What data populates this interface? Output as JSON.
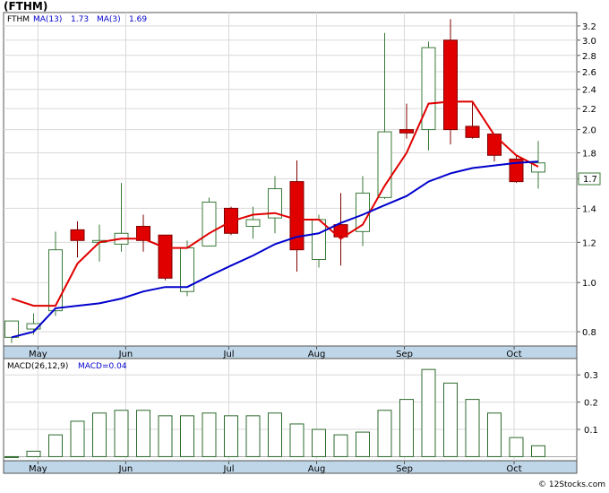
{
  "header": {
    "title": "(FTHM)",
    "ticker": "FTHM",
    "ma13_label": "MA(13)",
    "ma13_value": "1.73",
    "ma3_label": "MA(3)",
    "ma3_value": "1.69"
  },
  "macd_header": {
    "params": "MACD(26,12,9)",
    "value_label": "MACD=0.04"
  },
  "watermark": "© 12Stocks.com",
  "colors": {
    "up": "#3a7a3a",
    "down": "#e00000",
    "ma13": "#0000cc",
    "ma3": "#e00000",
    "grid": "#d9d9d9",
    "axis_bg": "#bfd6e8",
    "histogram": "#2d6a2d"
  },
  "chart_data": [
    {
      "type": "candlestick",
      "scale": "log",
      "ylim": [
        0.75,
        3.4
      ],
      "y_ticks": [
        "0.8",
        "1.0",
        "1.2",
        "1.4",
        "1.6",
        "1.8",
        "2.0",
        "2.2",
        "2.4",
        "2.6",
        "2.8",
        "3.0",
        "3.2"
      ],
      "x_tick_labels": [
        {
          "label": "May",
          "index": 1.2
        },
        {
          "label": "Jun",
          "index": 5.2
        },
        {
          "label": "Jul",
          "index": 9.9
        },
        {
          "label": "Aug",
          "index": 13.9
        },
        {
          "label": "Sep",
          "index": 17.9
        },
        {
          "label": "Oct",
          "index": 22.9
        }
      ],
      "last_price_label": "1.7",
      "candles": [
        {
          "open": 0.78,
          "high": 0.84,
          "low": 0.76,
          "close": 0.84
        },
        {
          "open": 0.81,
          "high": 0.87,
          "low": 0.79,
          "close": 0.83
        },
        {
          "open": 0.88,
          "high": 1.26,
          "low": 0.86,
          "close": 1.16
        },
        {
          "open": 1.27,
          "high": 1.32,
          "low": 1.12,
          "close": 1.21
        },
        {
          "open": 1.2,
          "high": 1.3,
          "low": 1.1,
          "close": 1.21
        },
        {
          "open": 1.19,
          "high": 1.57,
          "low": 1.15,
          "close": 1.25
        },
        {
          "open": 1.29,
          "high": 1.36,
          "low": 1.15,
          "close": 1.21
        },
        {
          "open": 1.24,
          "high": 1.24,
          "low": 1.01,
          "close": 1.02
        },
        {
          "open": 0.96,
          "high": 1.21,
          "low": 0.94,
          "close": 1.17
        },
        {
          "open": 1.18,
          "high": 1.47,
          "low": 1.18,
          "close": 1.44
        },
        {
          "open": 1.4,
          "high": 1.41,
          "low": 1.24,
          "close": 1.25
        },
        {
          "open": 1.29,
          "high": 1.41,
          "low": 1.22,
          "close": 1.33
        },
        {
          "open": 1.34,
          "high": 1.62,
          "low": 1.25,
          "close": 1.53
        },
        {
          "open": 1.58,
          "high": 1.74,
          "low": 1.05,
          "close": 1.16
        },
        {
          "open": 1.11,
          "high": 1.36,
          "low": 1.07,
          "close": 1.33
        },
        {
          "open": 1.3,
          "high": 1.5,
          "low": 1.08,
          "close": 1.23
        },
        {
          "open": 1.26,
          "high": 1.62,
          "low": 1.18,
          "close": 1.5
        },
        {
          "open": 1.47,
          "high": 3.1,
          "low": 1.46,
          "close": 1.98
        },
        {
          "open": 2.0,
          "high": 2.25,
          "low": 1.92,
          "close": 1.97
        },
        {
          "open": 2.0,
          "high": 2.98,
          "low": 1.82,
          "close": 2.9
        },
        {
          "open": 3.0,
          "high": 3.3,
          "low": 1.87,
          "close": 2.0
        },
        {
          "open": 2.03,
          "high": 2.27,
          "low": 1.92,
          "close": 1.93
        },
        {
          "open": 1.96,
          "high": 1.96,
          "low": 1.73,
          "close": 1.78
        },
        {
          "open": 1.75,
          "high": 1.78,
          "low": 1.57,
          "close": 1.58
        },
        {
          "open": 1.65,
          "high": 1.9,
          "low": 1.53,
          "close": 1.72
        }
      ],
      "series": [
        {
          "name": "MA(13)",
          "color": "#0000cc",
          "values": [
            0.78,
            0.8,
            0.89,
            0.9,
            0.91,
            0.93,
            0.96,
            0.98,
            0.98,
            1.03,
            1.08,
            1.13,
            1.19,
            1.23,
            1.25,
            1.31,
            1.36,
            1.42,
            1.48,
            1.58,
            1.64,
            1.68,
            1.7,
            1.72,
            1.73
          ]
        },
        {
          "name": "MA(3)",
          "color": "#e00000",
          "values": [
            0.93,
            0.9,
            0.9,
            null,
            null,
            null,
            null,
            null,
            null,
            null,
            null,
            null,
            null,
            null,
            null,
            null,
            null,
            null,
            null,
            null,
            null,
            null,
            null,
            null,
            null
          ]
        },
        {
          "name": "MA(3)",
          "color": "#e00000",
          "values": [
            null,
            null,
            null,
            null,
            null,
            null,
            null,
            null,
            null,
            null,
            null,
            null,
            null,
            null,
            null,
            null,
            null,
            null,
            null,
            null,
            2.27,
            2.27,
            1.95,
            1.78,
            1.69
          ]
        },
        {
          "name": "MA(3) swing",
          "color": "#e00000",
          "values": [
            0.93,
            0.9,
            0.9,
            1.09,
            1.2,
            1.22,
            1.22,
            1.17,
            1.17,
            1.25,
            1.32,
            1.36,
            1.37,
            1.33,
            1.33,
            1.22,
            1.3,
            1.55,
            1.8,
            2.25,
            2.27,
            2.27,
            1.95,
            1.78,
            1.69
          ]
        }
      ]
    },
    {
      "type": "bar",
      "title": "MACD(26,12,9)",
      "ylim": [
        -0.015,
        0.36
      ],
      "y_ticks": [
        "0.1",
        "0.2",
        "0.3"
      ],
      "x_tick_labels": [
        {
          "label": "May",
          "index": 1.2
        },
        {
          "label": "Jun",
          "index": 5.2
        },
        {
          "label": "Jul",
          "index": 9.9
        },
        {
          "label": "Aug",
          "index": 13.9
        },
        {
          "label": "Sep",
          "index": 17.9
        },
        {
          "label": "Oct",
          "index": 22.9
        }
      ],
      "values": [
        0.0,
        0.02,
        0.08,
        0.13,
        0.16,
        0.17,
        0.17,
        0.15,
        0.15,
        0.16,
        0.15,
        0.15,
        0.16,
        0.12,
        0.1,
        0.08,
        0.09,
        0.17,
        0.21,
        0.32,
        0.27,
        0.21,
        0.16,
        0.07,
        0.04
      ]
    }
  ]
}
